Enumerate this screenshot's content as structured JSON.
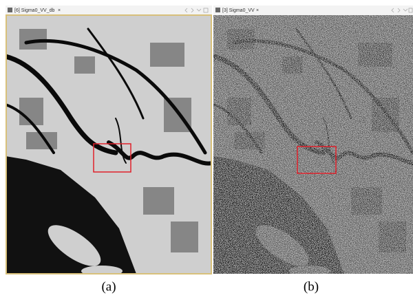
{
  "panels": [
    {
      "tab": {
        "label": "[6] Sigma0_VV_db",
        "close": "×"
      },
      "caption": "(a)"
    },
    {
      "tab": {
        "label": "[3] Sigma0_VV",
        "close": "×"
      },
      "caption": "(b)"
    }
  ]
}
